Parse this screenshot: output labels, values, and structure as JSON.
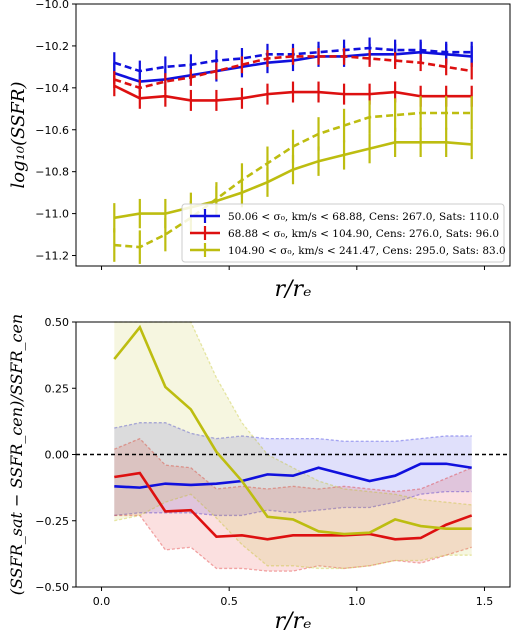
{
  "chart_data": [
    {
      "type": "line",
      "ylabel": "log₁₀(SSFR)",
      "xlabel": "r/rₑ",
      "xlim": [
        -0.1,
        1.6
      ],
      "ylim": [
        -11.25,
        -10.0
      ],
      "yticks": [
        "−10.0",
        "−10.2",
        "−10.4",
        "−10.6",
        "−10.8",
        "−11.0",
        "−11.2"
      ],
      "ytick_values": [
        -10.0,
        -10.2,
        -10.4,
        -10.6,
        -10.8,
        -11.0,
        -11.2
      ],
      "legend_loc": "lower-right",
      "x": [
        0.05,
        0.15,
        0.25,
        0.35,
        0.45,
        0.55,
        0.65,
        0.75,
        0.85,
        0.95,
        1.05,
        1.15,
        1.25,
        1.35,
        1.45
      ],
      "series": [
        {
          "name": "50.06 < σ₀, km/s < 68.88, Cens: 267.0, Sats: 110.0",
          "color": "#1010dd",
          "centrals": [
            -10.33,
            -10.37,
            -10.36,
            -10.34,
            -10.32,
            -10.3,
            -10.28,
            -10.27,
            -10.25,
            -10.25,
            -10.24,
            -10.24,
            -10.23,
            -10.24,
            -10.25
          ],
          "satellites": [
            -10.28,
            -10.32,
            -10.3,
            -10.29,
            -10.27,
            -10.26,
            -10.24,
            -10.24,
            -10.23,
            -10.22,
            -10.21,
            -10.22,
            -10.22,
            -10.23,
            -10.23
          ],
          "cen_err": 0.05,
          "sat_err": 0.05
        },
        {
          "name": "68.88 < σ₀, km/s < 104.90, Cens: 276.0, Sats: 96.0",
          "color": "#dd1010",
          "centrals": [
            -10.39,
            -10.45,
            -10.44,
            -10.46,
            -10.46,
            -10.45,
            -10.43,
            -10.42,
            -10.42,
            -10.43,
            -10.43,
            -10.42,
            -10.44,
            -10.44,
            -10.44
          ],
          "satellites": [
            -10.36,
            -10.4,
            -10.37,
            -10.35,
            -10.32,
            -10.29,
            -10.26,
            -10.25,
            -10.25,
            -10.25,
            -10.26,
            -10.27,
            -10.28,
            -10.3,
            -10.32
          ],
          "cen_err": 0.05,
          "sat_err": 0.04
        },
        {
          "name": "104.90 < σ₀, km/s < 241.47, Cens: 295.0, Sats: 83.0",
          "color": "#bdbd10",
          "centrals": [
            -11.02,
            -11.0,
            -11.0,
            -10.97,
            -10.94,
            -10.9,
            -10.85,
            -10.79,
            -10.75,
            -10.72,
            -10.69,
            -10.66,
            -10.66,
            -10.66,
            -10.67
          ],
          "satellites": [
            -11.15,
            -11.16,
            -11.1,
            -11.02,
            -10.93,
            -10.84,
            -10.76,
            -10.68,
            -10.62,
            -10.58,
            -10.54,
            -10.53,
            -10.52,
            -10.52,
            -10.52
          ],
          "cen_err": 0.07,
          "sat_err": 0.08
        }
      ]
    },
    {
      "type": "area",
      "ylabel": "(SSFR_sat − SSFR_cen)/SSFR_cen",
      "xlabel": "r/rₑ",
      "xlim": [
        -0.1,
        1.6
      ],
      "ylim": [
        -0.5,
        0.5
      ],
      "xticks": [
        "0.0",
        "0.5",
        "1.0",
        "1.5"
      ],
      "xtick_values": [
        0.0,
        0.5,
        1.0,
        1.5
      ],
      "yticks": [
        "0.50",
        "0.25",
        "0.00",
        "−0.25",
        "−0.50"
      ],
      "ytick_values": [
        0.5,
        0.25,
        0.0,
        -0.25,
        -0.5
      ],
      "reference_line_y": 0.0,
      "x": [
        0.05,
        0.15,
        0.25,
        0.35,
        0.45,
        0.55,
        0.65,
        0.75,
        0.85,
        0.95,
        1.05,
        1.15,
        1.25,
        1.35,
        1.45
      ],
      "series": [
        {
          "color": "#1010dd",
          "values": [
            -0.12,
            -0.125,
            -0.11,
            -0.115,
            -0.11,
            -0.1,
            -0.075,
            -0.08,
            -0.05,
            -0.075,
            -0.1,
            -0.08,
            -0.035,
            -0.035,
            -0.05
          ],
          "upper": [
            0.1,
            0.12,
            0.12,
            0.08,
            0.06,
            0.07,
            0.06,
            0.06,
            0.06,
            0.05,
            0.05,
            0.05,
            0.06,
            0.07,
            0.07
          ],
          "lower": [
            -0.23,
            -0.22,
            -0.22,
            -0.22,
            -0.23,
            -0.23,
            -0.21,
            -0.22,
            -0.21,
            -0.2,
            -0.2,
            -0.18,
            -0.15,
            -0.14,
            -0.14
          ]
        },
        {
          "color": "#dd1010",
          "values": [
            -0.085,
            -0.07,
            -0.215,
            -0.21,
            -0.31,
            -0.305,
            -0.32,
            -0.305,
            -0.305,
            -0.305,
            -0.3,
            -0.32,
            -0.315,
            -0.265,
            -0.23
          ],
          "upper": [
            0.02,
            0.06,
            -0.04,
            -0.05,
            -0.13,
            -0.12,
            -0.13,
            -0.12,
            -0.13,
            -0.12,
            -0.13,
            -0.14,
            -0.13,
            -0.09,
            -0.05
          ],
          "lower": [
            -0.23,
            -0.23,
            -0.36,
            -0.35,
            -0.43,
            -0.43,
            -0.44,
            -0.44,
            -0.42,
            -0.43,
            -0.42,
            -0.4,
            -0.41,
            -0.38,
            -0.35
          ]
        },
        {
          "color": "#bdbd10",
          "values": [
            0.36,
            0.48,
            0.255,
            0.17,
            0.01,
            -0.1,
            -0.235,
            -0.245,
            -0.29,
            -0.3,
            -0.295,
            -0.245,
            -0.27,
            -0.28,
            -0.28
          ],
          "upper": [
            0.5,
            0.5,
            0.5,
            0.5,
            0.29,
            0.12,
            0.0,
            -0.05,
            -0.1,
            -0.13,
            -0.14,
            -0.15,
            -0.17,
            -0.18,
            -0.19
          ],
          "lower": [
            -0.25,
            -0.23,
            -0.18,
            -0.15,
            -0.24,
            -0.34,
            -0.42,
            -0.42,
            -0.43,
            -0.43,
            -0.42,
            -0.4,
            -0.4,
            -0.38,
            -0.38
          ]
        }
      ]
    }
  ]
}
